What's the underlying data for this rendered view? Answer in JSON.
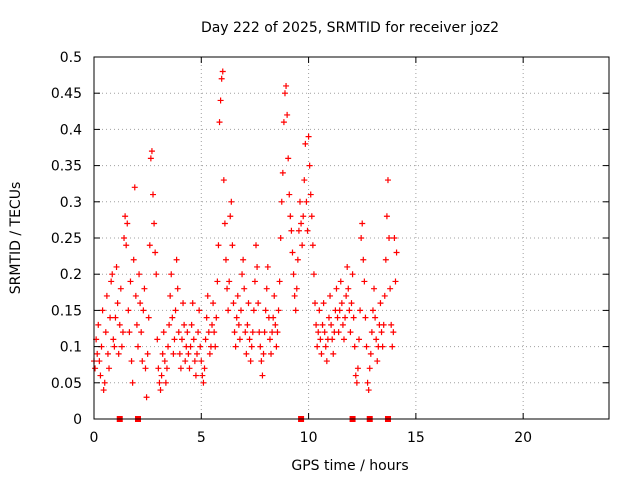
{
  "colors": {
    "series": "#ff0000",
    "grid": "#a0a0a0",
    "axes": "#000000",
    "background": "#ffffff"
  },
  "chart_data": {
    "type": "scatter",
    "title": "Day 222 of 2025, SRMTID for receiver joz2",
    "xlabel": "GPS time / hours",
    "ylabel": "SRMTID / TECUs",
    "xlim": [
      0,
      24
    ],
    "ylim": [
      0,
      0.5
    ],
    "xticks": [
      0,
      5,
      10,
      15,
      20
    ],
    "xtick_labels": [
      "0",
      "5",
      "10",
      "15",
      "20"
    ],
    "yticks": [
      0,
      0.05,
      0.1,
      0.15,
      0.2,
      0.25,
      0.3,
      0.35,
      0.4,
      0.45,
      0.5
    ],
    "ytick_labels": [
      "0",
      "0.05",
      "0.1",
      "0.15",
      "0.2",
      "0.25",
      "0.3",
      "0.35",
      "0.4",
      "0.45",
      "0.5"
    ],
    "grid": true,
    "marker": "plus",
    "series": [
      {
        "name": "SRMTID",
        "points": [
          [
            0.0,
            0.08
          ],
          [
            0.05,
            0.07
          ],
          [
            0.1,
            0.11
          ],
          [
            0.15,
            0.09
          ],
          [
            0.2,
            0.13
          ],
          [
            0.25,
            0.08
          ],
          [
            0.3,
            0.06
          ],
          [
            0.35,
            0.1
          ],
          [
            0.4,
            0.15
          ],
          [
            0.45,
            0.04
          ],
          [
            0.5,
            0.05
          ],
          [
            0.55,
            0.12
          ],
          [
            0.6,
            0.17
          ],
          [
            0.65,
            0.09
          ],
          [
            0.7,
            0.07
          ],
          [
            0.75,
            0.14
          ],
          [
            0.8,
            0.19
          ],
          [
            0.85,
            0.2
          ],
          [
            0.9,
            0.11
          ],
          [
            0.95,
            0.1
          ],
          [
            1.0,
            0.14
          ],
          [
            1.05,
            0.21
          ],
          [
            1.1,
            0.16
          ],
          [
            1.15,
            0.09
          ],
          [
            1.2,
            0.13
          ],
          [
            1.25,
            0.18
          ],
          [
            1.3,
            0.1
          ],
          [
            1.35,
            0.12
          ],
          [
            1.4,
            0.25
          ],
          [
            1.45,
            0.28
          ],
          [
            1.5,
            0.24
          ],
          [
            1.55,
            0.27
          ],
          [
            1.6,
            0.15
          ],
          [
            1.65,
            0.12
          ],
          [
            1.7,
            0.19
          ],
          [
            1.75,
            0.08
          ],
          [
            1.8,
            0.05
          ],
          [
            1.85,
            0.22
          ],
          [
            1.9,
            0.32
          ],
          [
            1.95,
            0.17
          ],
          [
            2.0,
            0.13
          ],
          [
            2.05,
            0.1
          ],
          [
            2.1,
            0.2
          ],
          [
            2.15,
            0.16
          ],
          [
            2.2,
            0.12
          ],
          [
            2.25,
            0.08
          ],
          [
            2.3,
            0.15
          ],
          [
            2.35,
            0.18
          ],
          [
            2.4,
            0.07
          ],
          [
            2.45,
            0.03
          ],
          [
            2.5,
            0.09
          ],
          [
            2.55,
            0.14
          ],
          [
            2.6,
            0.24
          ],
          [
            2.65,
            0.36
          ],
          [
            2.7,
            0.37
          ],
          [
            2.75,
            0.31
          ],
          [
            2.8,
            0.27
          ],
          [
            2.85,
            0.23
          ],
          [
            2.9,
            0.2
          ],
          [
            2.95,
            0.11
          ],
          [
            3.0,
            0.07
          ],
          [
            3.05,
            0.05
          ],
          [
            3.1,
            0.04
          ],
          [
            3.15,
            0.06
          ],
          [
            3.2,
            0.09
          ],
          [
            3.25,
            0.12
          ],
          [
            3.3,
            0.08
          ],
          [
            3.35,
            0.05
          ],
          [
            3.4,
            0.07
          ],
          [
            3.45,
            0.1
          ],
          [
            3.5,
            0.13
          ],
          [
            3.55,
            0.17
          ],
          [
            3.6,
            0.2
          ],
          [
            3.65,
            0.14
          ],
          [
            3.7,
            0.09
          ],
          [
            3.75,
            0.11
          ],
          [
            3.8,
            0.15
          ],
          [
            3.85,
            0.22
          ],
          [
            3.9,
            0.18
          ],
          [
            3.95,
            0.12
          ],
          [
            4.0,
            0.09
          ],
          [
            4.05,
            0.07
          ],
          [
            4.1,
            0.11
          ],
          [
            4.15,
            0.16
          ],
          [
            4.2,
            0.13
          ],
          [
            4.25,
            0.08
          ],
          [
            4.3,
            0.1
          ],
          [
            4.35,
            0.12
          ],
          [
            4.4,
            0.09
          ],
          [
            4.45,
            0.07
          ],
          [
            4.5,
            0.1
          ],
          [
            4.55,
            0.13
          ],
          [
            4.6,
            0.16
          ],
          [
            4.65,
            0.11
          ],
          [
            4.7,
            0.08
          ],
          [
            4.75,
            0.06
          ],
          [
            4.8,
            0.09
          ],
          [
            4.85,
            0.12
          ],
          [
            4.9,
            0.15
          ],
          [
            4.95,
            0.1
          ],
          [
            5.0,
            0.08
          ],
          [
            5.05,
            0.06
          ],
          [
            5.1,
            0.05
          ],
          [
            5.15,
            0.07
          ],
          [
            5.2,
            0.11
          ],
          [
            5.25,
            0.14
          ],
          [
            5.3,
            0.17
          ],
          [
            5.35,
            0.12
          ],
          [
            5.4,
            0.09
          ],
          [
            5.45,
            0.1
          ],
          [
            5.5,
            0.13
          ],
          [
            5.55,
            0.16
          ],
          [
            5.6,
            0.12
          ],
          [
            5.65,
            0.1
          ],
          [
            5.7,
            0.14
          ],
          [
            5.75,
            0.19
          ],
          [
            5.8,
            0.24
          ],
          [
            5.85,
            0.41
          ],
          [
            5.9,
            0.44
          ],
          [
            5.95,
            0.47
          ],
          [
            6.0,
            0.48
          ],
          [
            6.05,
            0.33
          ],
          [
            6.1,
            0.27
          ],
          [
            6.15,
            0.22
          ],
          [
            6.2,
            0.18
          ],
          [
            6.25,
            0.15
          ],
          [
            6.3,
            0.19
          ],
          [
            6.35,
            0.28
          ],
          [
            6.4,
            0.3
          ],
          [
            6.45,
            0.24
          ],
          [
            6.5,
            0.16
          ],
          [
            6.55,
            0.12
          ],
          [
            6.6,
            0.1
          ],
          [
            6.65,
            0.14
          ],
          [
            6.7,
            0.17
          ],
          [
            6.75,
            0.13
          ],
          [
            6.8,
            0.11
          ],
          [
            6.85,
            0.15
          ],
          [
            6.9,
            0.2
          ],
          [
            6.95,
            0.22
          ],
          [
            7.0,
            0.18
          ],
          [
            7.05,
            0.12
          ],
          [
            7.1,
            0.09
          ],
          [
            7.15,
            0.13
          ],
          [
            7.2,
            0.16
          ],
          [
            7.25,
            0.11
          ],
          [
            7.3,
            0.08
          ],
          [
            7.35,
            0.1
          ],
          [
            7.4,
            0.12
          ],
          [
            7.45,
            0.15
          ],
          [
            7.5,
            0.19
          ],
          [
            7.55,
            0.24
          ],
          [
            7.6,
            0.21
          ],
          [
            7.65,
            0.16
          ],
          [
            7.7,
            0.12
          ],
          [
            7.75,
            0.1
          ],
          [
            7.8,
            0.08
          ],
          [
            7.85,
            0.06
          ],
          [
            7.9,
            0.09
          ],
          [
            7.95,
            0.12
          ],
          [
            8.0,
            0.15
          ],
          [
            8.05,
            0.18
          ],
          [
            8.1,
            0.21
          ],
          [
            8.15,
            0.14
          ],
          [
            8.2,
            0.11
          ],
          [
            8.25,
            0.09
          ],
          [
            8.3,
            0.12
          ],
          [
            8.35,
            0.14
          ],
          [
            8.4,
            0.17
          ],
          [
            8.45,
            0.13
          ],
          [
            8.5,
            0.1
          ],
          [
            8.55,
            0.12
          ],
          [
            8.6,
            0.15
          ],
          [
            8.65,
            0.19
          ],
          [
            8.7,
            0.25
          ],
          [
            8.75,
            0.3
          ],
          [
            8.8,
            0.34
          ],
          [
            8.85,
            0.41
          ],
          [
            8.9,
            0.45
          ],
          [
            8.95,
            0.46
          ],
          [
            9.0,
            0.42
          ],
          [
            9.05,
            0.36
          ],
          [
            9.1,
            0.31
          ],
          [
            9.15,
            0.28
          ],
          [
            9.2,
            0.26
          ],
          [
            9.25,
            0.23
          ],
          [
            9.3,
            0.2
          ],
          [
            9.35,
            0.17
          ],
          [
            9.4,
            0.15
          ],
          [
            9.45,
            0.18
          ],
          [
            9.5,
            0.22
          ],
          [
            9.55,
            0.26
          ],
          [
            9.6,
            0.3
          ],
          [
            9.65,
            0.27
          ],
          [
            9.7,
            0.24
          ],
          [
            9.75,
            0.28
          ],
          [
            9.8,
            0.33
          ],
          [
            9.85,
            0.38
          ],
          [
            9.9,
            0.3
          ],
          [
            9.95,
            0.26
          ],
          [
            10.0,
            0.39
          ],
          [
            10.05,
            0.35
          ],
          [
            10.1,
            0.31
          ],
          [
            10.15,
            0.28
          ],
          [
            10.2,
            0.24
          ],
          [
            10.25,
            0.2
          ],
          [
            10.3,
            0.16
          ],
          [
            10.35,
            0.13
          ],
          [
            10.4,
            0.1
          ],
          [
            10.45,
            0.12
          ],
          [
            10.5,
            0.15
          ],
          [
            10.55,
            0.11
          ],
          [
            10.6,
            0.09
          ],
          [
            10.65,
            0.13
          ],
          [
            10.7,
            0.16
          ],
          [
            10.75,
            0.12
          ],
          [
            10.8,
            0.1
          ],
          [
            10.85,
            0.08
          ],
          [
            10.9,
            0.11
          ],
          [
            10.95,
            0.14
          ],
          [
            11.0,
            0.17
          ],
          [
            11.05,
            0.13
          ],
          [
            11.1,
            0.11
          ],
          [
            11.15,
            0.09
          ],
          [
            11.2,
            0.12
          ],
          [
            11.25,
            0.15
          ],
          [
            11.3,
            0.18
          ],
          [
            11.35,
            0.14
          ],
          [
            11.4,
            0.12
          ],
          [
            11.45,
            0.15
          ],
          [
            11.5,
            0.19
          ],
          [
            11.55,
            0.16
          ],
          [
            11.6,
            0.13
          ],
          [
            11.65,
            0.11
          ],
          [
            11.7,
            0.14
          ],
          [
            11.75,
            0.17
          ],
          [
            11.8,
            0.21
          ],
          [
            11.85,
            0.18
          ],
          [
            11.9,
            0.15
          ],
          [
            11.95,
            0.12
          ],
          [
            12.0,
            0.16
          ],
          [
            12.05,
            0.2
          ],
          [
            12.1,
            0.14
          ],
          [
            12.15,
            0.1
          ],
          [
            12.2,
            0.06
          ],
          [
            12.25,
            0.05
          ],
          [
            12.3,
            0.07
          ],
          [
            12.35,
            0.11
          ],
          [
            12.4,
            0.15
          ],
          [
            12.45,
            0.25
          ],
          [
            12.5,
            0.27
          ],
          [
            12.55,
            0.22
          ],
          [
            12.6,
            0.19
          ],
          [
            12.65,
            0.14
          ],
          [
            12.7,
            0.1
          ],
          [
            12.75,
            0.05
          ],
          [
            12.8,
            0.04
          ],
          [
            12.85,
            0.07
          ],
          [
            12.9,
            0.09
          ],
          [
            12.95,
            0.12
          ],
          [
            13.0,
            0.15
          ],
          [
            13.05,
            0.18
          ],
          [
            13.1,
            0.14
          ],
          [
            13.15,
            0.11
          ],
          [
            13.2,
            0.08
          ],
          [
            13.25,
            0.1
          ],
          [
            13.3,
            0.13
          ],
          [
            13.35,
            0.16
          ],
          [
            13.4,
            0.12
          ],
          [
            13.45,
            0.1
          ],
          [
            13.5,
            0.13
          ],
          [
            13.55,
            0.17
          ],
          [
            13.6,
            0.22
          ],
          [
            13.65,
            0.28
          ],
          [
            13.7,
            0.33
          ],
          [
            13.75,
            0.25
          ],
          [
            13.8,
            0.18
          ],
          [
            13.85,
            0.13
          ],
          [
            13.9,
            0.1
          ],
          [
            13.95,
            0.12
          ],
          [
            14.0,
            0.25
          ],
          [
            14.05,
            0.19
          ],
          [
            14.1,
            0.23
          ]
        ]
      },
      {
        "name": "markers",
        "points": [
          [
            1.2,
            0
          ],
          [
            2.05,
            0
          ],
          [
            9.65,
            0
          ],
          [
            12.05,
            0
          ],
          [
            12.85,
            0
          ],
          [
            13.7,
            0
          ]
        ]
      }
    ]
  }
}
